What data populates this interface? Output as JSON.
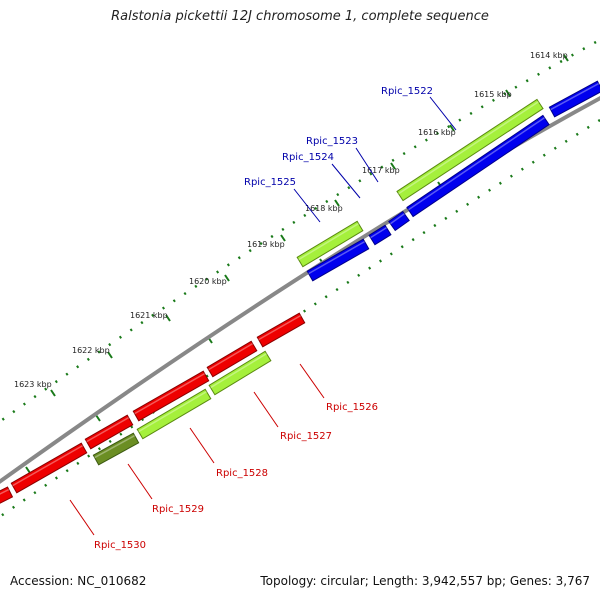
{
  "title": "Ralstonia pickettii 12J chromosome 1, complete sequence",
  "footer": {
    "accession": "Accession: NC_010682",
    "info": "Topology: circular; Length: 3,942,557 bp; Genes: 3,767"
  },
  "ticks": [
    "1614 kbp",
    "1615 kbp",
    "1616 kbp",
    "1617 kbp",
    "1618 kbp",
    "1619 kbp",
    "1620 kbp",
    "1621 kbp",
    "1622 kbp",
    "1623 kbp"
  ],
  "genes": [
    {
      "name": "Rpic_1522",
      "color": "#0000aa"
    },
    {
      "name": "Rpic_1523",
      "color": "#0000aa"
    },
    {
      "name": "Rpic_1524",
      "color": "#0000aa"
    },
    {
      "name": "Rpic_1525",
      "color": "#0000aa"
    },
    {
      "name": "Rpic_1526",
      "color": "#cc0000"
    },
    {
      "name": "Rpic_1527",
      "color": "#cc0000"
    },
    {
      "name": "Rpic_1528",
      "color": "#cc0000"
    },
    {
      "name": "Rpic_1529",
      "color": "#cc0000"
    },
    {
      "name": "Rpic_1530",
      "color": "#cc0000"
    }
  ],
  "colors": {
    "backbone": "#888888",
    "forward_cds": "#0000ee",
    "reverse_cds": "#ee0000",
    "feature_light": "#a5f03c",
    "feature_dark": "#6b8e23",
    "tick": "#1a7a1a"
  }
}
